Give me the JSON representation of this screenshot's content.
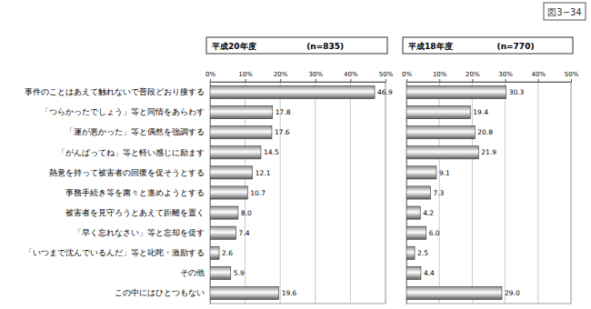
{
  "figure_label": "図3−34",
  "chart_data": [
    {
      "type": "bar",
      "orientation": "horizontal",
      "title": "平成20年度",
      "subtitle": "(n=835)",
      "categories": [
        "事件のことはあえて触れないで普段どおり接する",
        "「つらかったでしょう」等と同情をあらわす",
        "「運が悪かった」等と偶然を強調する",
        "「がんばってね」等と軽い感じに励ます",
        "熱意を持って被害者の回復を促そうとする",
        "事務手続き等を粛々と進めようとする",
        "被害者を見守ろうとあえて距離を置く",
        "「早く忘れなさい」等と忘却を促す",
        "「いつまで沈んでいるんだ」等と叱咤・激励する",
        "その他",
        "この中にはひとつもない"
      ],
      "values": [
        46.9,
        17.8,
        17.6,
        14.5,
        12.1,
        10.7,
        8.0,
        7.4,
        2.6,
        5.9,
        19.6
      ],
      "value_labels": [
        "46.9",
        "17.8",
        "17.6",
        "14.5",
        "12.1",
        "10.7",
        "8.0",
        "7.4",
        "2.6",
        "5.9",
        "19.6"
      ],
      "data_labels": true,
      "color": "#8c8c8c",
      "xlim": [
        0,
        50
      ],
      "xticks": [
        {
          "value": 0,
          "label": "0%"
        },
        {
          "value": 10,
          "label": "10%"
        },
        {
          "value": 20,
          "label": "20%"
        },
        {
          "value": 30,
          "label": "30%"
        },
        {
          "value": 40,
          "label": "40%"
        },
        {
          "value": 50,
          "label": "50%"
        }
      ],
      "grid": true
    },
    {
      "type": "bar",
      "orientation": "horizontal",
      "title": "平成18年度",
      "subtitle": "(n=770)",
      "categories": [
        null,
        null,
        null,
        null,
        null,
        null,
        null,
        null,
        null,
        null,
        null
      ],
      "values": [
        30.3,
        19.4,
        20.8,
        21.9,
        9.1,
        7.3,
        4.2,
        6.0,
        2.5,
        4.4,
        29.0
      ],
      "value_labels": [
        "30.3",
        "19.4",
        "20.8",
        "21.9",
        "9.1",
        "7.3",
        "4.2",
        "6.0",
        "2.5",
        "4.4",
        "29.0"
      ],
      "data_labels": true,
      "color": "#8c8c8c",
      "xlim": [
        0,
        50
      ],
      "xticks": [
        {
          "value": 0,
          "label": "0%"
        },
        {
          "value": 10,
          "label": "10%"
        },
        {
          "value": 20,
          "label": "20%"
        },
        {
          "value": 30,
          "label": "30%"
        },
        {
          "value": 40,
          "label": "40%"
        },
        {
          "value": 50,
          "label": "50%"
        }
      ],
      "grid": true,
      "tick_labels": "x"
    }
  ]
}
